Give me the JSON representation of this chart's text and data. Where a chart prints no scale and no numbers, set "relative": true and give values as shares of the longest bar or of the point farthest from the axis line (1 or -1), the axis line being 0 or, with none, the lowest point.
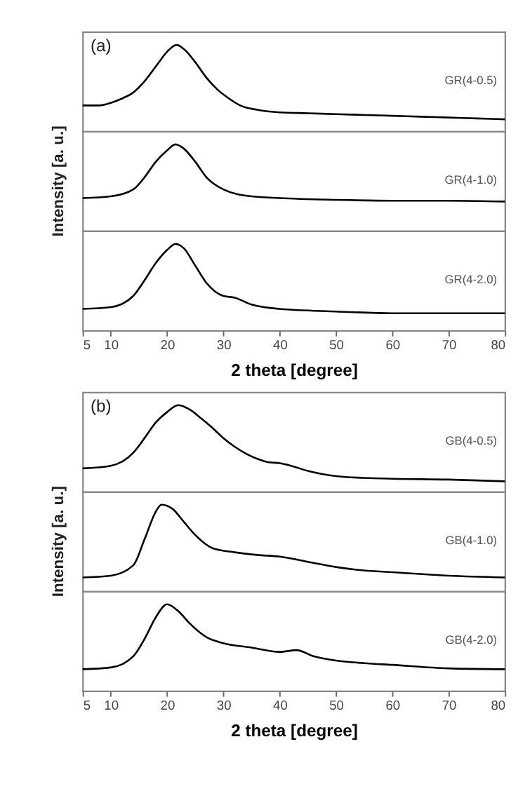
{
  "chart_data": [
    {
      "type": "line",
      "relative": true,
      "annotations": [
        "(a)"
      ],
      "xlim": [
        5,
        80
      ],
      "xticks": [
        5,
        10,
        20,
        30,
        40,
        50,
        60,
        70,
        80
      ],
      "tick_labels": false,
      "grid": false,
      "x": [
        5,
        8,
        10,
        12,
        14,
        16,
        18,
        20,
        21.7,
        23,
        25,
        27,
        29,
        31,
        33,
        36,
        40,
        45,
        50,
        55,
        60,
        65,
        70,
        75,
        80
      ],
      "series": [
        {
          "name": "GR(4-0.5)",
          "color": "#000000",
          "values": [
            0.3,
            0.3,
            0.33,
            0.38,
            0.45,
            0.58,
            0.75,
            0.92,
            1.0,
            0.95,
            0.8,
            0.62,
            0.48,
            0.38,
            0.3,
            0.25,
            0.22,
            0.21,
            0.2,
            0.19,
            0.18,
            0.17,
            0.16,
            0.15,
            0.14
          ]
        }
      ]
    },
    {
      "type": "line",
      "relative": true,
      "ylabel": "Intensity [a. u.]",
      "xlim": [
        5,
        80
      ],
      "xticks": [
        5,
        10,
        20,
        30,
        40,
        50,
        60,
        70,
        80
      ],
      "tick_labels": false,
      "grid": false,
      "x": [
        5,
        10,
        14,
        16,
        18,
        20,
        21.5,
        23,
        25,
        27,
        30,
        35,
        40,
        50,
        60,
        70,
        80
      ],
      "series": [
        {
          "name": "GR(4-1.0)",
          "color": "#000000",
          "values": [
            0.38,
            0.4,
            0.48,
            0.62,
            0.8,
            0.93,
            1.0,
            0.95,
            0.8,
            0.62,
            0.48,
            0.4,
            0.38,
            0.36,
            0.35,
            0.35,
            0.34
          ]
        }
      ]
    },
    {
      "type": "line",
      "relative": true,
      "xlabel": "2 theta [degree]",
      "xlim": [
        5,
        80
      ],
      "xticks": [
        5,
        10,
        20,
        30,
        40,
        50,
        60,
        70,
        80
      ],
      "tick_labels": "x",
      "grid": false,
      "x": [
        5,
        10,
        14,
        16,
        18,
        20,
        21.5,
        23,
        25,
        27,
        30,
        32,
        35,
        40,
        50,
        60,
        70,
        80
      ],
      "series": [
        {
          "name": "GR(4-2.0)",
          "color": "#000000",
          "values": [
            0.25,
            0.27,
            0.4,
            0.58,
            0.78,
            0.93,
            1.0,
            0.95,
            0.75,
            0.55,
            0.4,
            0.38,
            0.3,
            0.25,
            0.22,
            0.2,
            0.2,
            0.2
          ]
        }
      ]
    },
    {
      "type": "line",
      "relative": true,
      "annotations": [
        "(b)"
      ],
      "xlim": [
        5,
        80
      ],
      "xticks": [
        5,
        10,
        20,
        30,
        40,
        50,
        60,
        70,
        80
      ],
      "tick_labels": false,
      "grid": false,
      "x": [
        5,
        10,
        14,
        16,
        18,
        20,
        22,
        24,
        26,
        28,
        30,
        32,
        34,
        36,
        38,
        40,
        42,
        45,
        50,
        55,
        60,
        70,
        80
      ],
      "series": [
        {
          "name": "GB(4-0.5)",
          "color": "#000000",
          "values": [
            0.27,
            0.3,
            0.45,
            0.62,
            0.8,
            0.92,
            1.0,
            0.95,
            0.85,
            0.74,
            0.62,
            0.52,
            0.44,
            0.38,
            0.34,
            0.33,
            0.3,
            0.24,
            0.18,
            0.16,
            0.15,
            0.14,
            0.12
          ]
        }
      ]
    },
    {
      "type": "line",
      "relative": true,
      "ylabel": "Intensity [a. u.]",
      "xlim": [
        5,
        80
      ],
      "xticks": [
        5,
        10,
        20,
        30,
        40,
        50,
        60,
        70,
        80
      ],
      "tick_labels": false,
      "grid": false,
      "x": [
        5,
        10,
        14,
        16,
        18,
        19,
        21,
        23,
        25,
        28,
        32,
        36,
        40,
        45,
        50,
        55,
        60,
        70,
        80
      ],
      "series": [
        {
          "name": "GB(4-1.0)",
          "color": "#000000",
          "values": [
            0.16,
            0.18,
            0.3,
            0.6,
            0.92,
            1.0,
            0.95,
            0.8,
            0.65,
            0.5,
            0.45,
            0.42,
            0.4,
            0.34,
            0.28,
            0.24,
            0.22,
            0.18,
            0.16
          ]
        }
      ]
    },
    {
      "type": "line",
      "relative": true,
      "xlabel": "2 theta [degree]",
      "xlim": [
        5,
        80
      ],
      "xticks": [
        5,
        10,
        20,
        30,
        40,
        50,
        60,
        70,
        80
      ],
      "tick_labels": "x",
      "grid": false,
      "x": [
        5,
        10,
        14,
        16,
        18,
        20,
        22,
        24,
        27,
        30,
        35,
        40,
        43,
        46,
        50,
        55,
        60,
        70,
        80
      ],
      "series": [
        {
          "name": "GB(4-2.0)",
          "color": "#000000",
          "values": [
            0.25,
            0.27,
            0.4,
            0.6,
            0.85,
            1.0,
            0.92,
            0.78,
            0.62,
            0.55,
            0.5,
            0.45,
            0.47,
            0.4,
            0.35,
            0.32,
            0.3,
            0.26,
            0.25
          ]
        }
      ]
    }
  ]
}
